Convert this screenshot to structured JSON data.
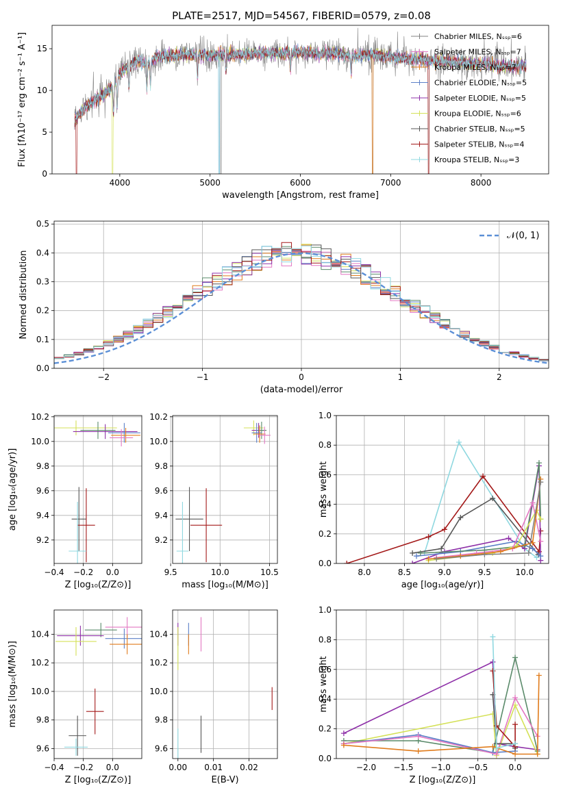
{
  "title": "PLATE=2517, MJD=54567, FIBERID=0579, z=0.08",
  "colors": {
    "Chabrier MILES": "#808080",
    "Salpeter MILES": "#e377c2",
    "Kroupa MILES": "#e07b1b",
    "Chabrier ELODIE": "#5b7fc7",
    "Salpeter ELODIE": "#8e30a8",
    "Kroupa ELODIE": "#d4e157",
    "Chabrier STELIB": "#555555",
    "Salpeter STELIB": "#a31818",
    "Kroupa STELIB": "#8fd8e0",
    "extra_green": "#5a8a6a",
    "normal": "#5b8fd6"
  },
  "chart_data": [
    {
      "type": "line",
      "title": "PLATE=2517, MJD=54567, FIBERID=0579, z=0.08",
      "xlabel": "wavelength [Angstrom, rest frame]",
      "ylabel": "Flux [fλ10⁻¹⁷ erg cm⁻² s⁻¹ A⁻¹]",
      "xlim": [
        3250,
        8750
      ],
      "ylim": [
        0,
        17.8
      ],
      "xticks": [
        "4000",
        "5000",
        "6000",
        "7000",
        "8000"
      ],
      "yticks": [
        "0",
        "5",
        "10",
        "15"
      ],
      "grid": false,
      "legend_position": "right",
      "legend": [
        "Chabrier MILES, Nₛₛₚ=6",
        "Salpeter MILES, Nₛₛₚ=7",
        "Kroupa MILES, Nₛₛₚ=7",
        "Chabrier ELODIE, Nₛₛₚ=5",
        "Salpeter ELODIE, Nₛₛₚ=5",
        "Kroupa ELODIE, Nₛₛₚ=6",
        "Chabrier STELIB, Nₛₛₚ=5",
        "Salpeter STELIB, Nₛₛₚ=4",
        "Kroupa STELIB, Nₛₛₚ=3"
      ],
      "continuum": {
        "wavelength": [
          3500,
          3600,
          3700,
          3800,
          3900,
          4000,
          4100,
          4200,
          4300,
          4400,
          4600,
          4800,
          5000,
          5200,
          5400,
          5600,
          5800,
          6000,
          6200,
          6400,
          6600,
          6800,
          7000,
          7200,
          7400,
          7600,
          7800,
          8000,
          8200,
          8400,
          8500
        ],
        "flux": [
          6.5,
          7.8,
          8.6,
          9.4,
          10.2,
          12.0,
          12.9,
          13.6,
          13.2,
          14.0,
          14.2,
          14.3,
          14.2,
          14.3,
          14.4,
          14.5,
          14.4,
          14.6,
          14.4,
          14.5,
          14.1,
          14.3,
          14.0,
          13.8,
          13.6,
          13.5,
          13.3,
          13.2,
          13.0,
          12.9,
          12.9
        ]
      }
    },
    {
      "type": "histogram",
      "xlabel": "(data-model)/error",
      "ylabel": "Normed distribution",
      "xlim": [
        -2.5,
        2.5
      ],
      "ylim": [
        0,
        0.51
      ],
      "xticks": [
        "−2",
        "−1",
        "0",
        "1",
        "2"
      ],
      "yticks": [
        "0.0",
        "0.1",
        "0.2",
        "0.3",
        "0.4",
        "0.5"
      ],
      "grid": true,
      "legend_position": "top-right",
      "overlay_label": "𝒩(0, 1)",
      "bin_width": 0.1,
      "bin_start": -2.5
    },
    {
      "type": "scatter",
      "xlabel": "Z [log₁₀(Z/Z⊙)]",
      "ylabel": "age  [log₁₀(age/yr)]",
      "xlim": [
        -0.4,
        0.2
      ],
      "ylim": [
        9.01,
        10.21
      ],
      "xticks": [
        "−0.4",
        "−0.2",
        "0.0"
      ],
      "yticks": [
        "9.2",
        "9.4",
        "9.6",
        "9.8",
        "10.0",
        "10.2"
      ],
      "grid": true,
      "points": [
        {
          "model": "Kroupa ELODIE",
          "x": -0.25,
          "y": 10.11,
          "xerr": 0.28,
          "yerr": 0.06
        },
        {
          "model": "Salpeter ELODIE",
          "x": -0.05,
          "y": 10.08,
          "xerr": 0.22,
          "yerr": 0.06
        },
        {
          "model": "extra_green",
          "x": -0.1,
          "y": 10.09,
          "xerr": 0.12,
          "yerr": 0.07
        },
        {
          "model": "Chabrier ELODIE",
          "x": 0.08,
          "y": 10.07,
          "xerr": 0.11,
          "yerr": 0.08
        },
        {
          "model": "Kroupa MILES",
          "x": 0.09,
          "y": 10.05,
          "xerr": 0.1,
          "yerr": 0.06
        },
        {
          "model": "Salpeter MILES",
          "x": 0.06,
          "y": 10.03,
          "xerr": 0.08,
          "yerr": 0.07
        },
        {
          "model": "Chabrier STELIB",
          "x": -0.23,
          "y": 9.37,
          "xerr": 0.05,
          "yerr": 0.26
        },
        {
          "model": "Salpeter STELIB",
          "x": -0.18,
          "y": 9.32,
          "xerr": 0.06,
          "yerr": 0.3
        },
        {
          "model": "Kroupa STELIB",
          "x": -0.24,
          "y": 9.11,
          "xerr": 0.06,
          "yerr": 0.4
        }
      ]
    },
    {
      "type": "scatter",
      "xlabel": "mass [log₁₀(M/M⊙)]",
      "ylabel": "",
      "xlim": [
        9.52,
        10.58
      ],
      "ylim": [
        9.01,
        10.21
      ],
      "xticks": [
        "9.5",
        "10.0",
        "10.5"
      ],
      "yticks": [
        "9.2",
        "9.4",
        "9.6",
        "9.8",
        "10.0",
        "10.2"
      ],
      "grid": true,
      "points": [
        {
          "model": "Kroupa ELODIE",
          "x": 10.34,
          "y": 10.11,
          "xerr": 0.1,
          "yerr": 0.06
        },
        {
          "model": "Salpeter ELODIE",
          "x": 10.39,
          "y": 10.09,
          "xerr": 0.07,
          "yerr": 0.06
        },
        {
          "model": "extra_green",
          "x": 10.42,
          "y": 10.09,
          "xerr": 0.05,
          "yerr": 0.07
        },
        {
          "model": "Chabrier ELODIE",
          "x": 10.37,
          "y": 10.07,
          "xerr": 0.05,
          "yerr": 0.08
        },
        {
          "model": "Kroupa MILES",
          "x": 10.4,
          "y": 10.06,
          "xerr": 0.06,
          "yerr": 0.07
        },
        {
          "model": "Salpeter MILES",
          "x": 10.45,
          "y": 10.05,
          "xerr": 0.06,
          "yerr": 0.07
        },
        {
          "model": "Chabrier STELIB",
          "x": 9.69,
          "y": 9.37,
          "xerr": 0.14,
          "yerr": 0.26
        },
        {
          "model": "Salpeter STELIB",
          "x": 9.86,
          "y": 9.32,
          "xerr": 0.16,
          "yerr": 0.3
        },
        {
          "model": "Kroupa STELIB",
          "x": 9.62,
          "y": 9.11,
          "xerr": 0.06,
          "yerr": 0.4
        }
      ]
    },
    {
      "type": "line",
      "xlabel": "age  [log₁₀(age/yr)]",
      "ylabel": "mass weight",
      "xlim": [
        7.65,
        10.3
      ],
      "ylim": [
        0,
        1.0
      ],
      "xticks": [
        "8.0",
        "8.5",
        "9.0",
        "9.5",
        "10.0"
      ],
      "yticks": [
        "0.0",
        "0.2",
        "0.4",
        "0.6",
        "0.8",
        "1.0"
      ],
      "grid": true,
      "series": [
        {
          "model": "Kroupa STELIB",
          "x": [
            8.75,
            9.18,
            10.0,
            10.15
          ],
          "y": [
            0.07,
            0.82,
            0.1,
            0.04
          ]
        },
        {
          "model": "Salpeter STELIB",
          "x": [
            7.78,
            8.8,
            9.0,
            9.48,
            10.18,
            10.2
          ],
          "y": [
            0.0,
            0.18,
            0.23,
            0.59,
            0.08,
            0.22
          ]
        },
        {
          "model": "Chabrier STELIB",
          "x": [
            8.6,
            8.96,
            9.2,
            9.6,
            10.17
          ],
          "y": [
            0.07,
            0.1,
            0.31,
            0.44,
            0.06
          ]
        },
        {
          "model": "Salpeter ELODIE",
          "x": [
            8.6,
            9.0,
            9.8,
            10.0,
            10.18,
            10.2
          ],
          "y": [
            0.0,
            0.08,
            0.17,
            0.1,
            0.66,
            0.02
          ]
        },
        {
          "model": "Chabrier ELODIE",
          "x": [
            8.65,
            9.2,
            9.9,
            10.1,
            10.2
          ],
          "y": [
            0.05,
            0.08,
            0.15,
            0.1,
            0.05
          ]
        },
        {
          "model": "extra_green",
          "x": [
            8.7,
            9.5,
            10.0,
            10.18,
            10.2
          ],
          "y": [
            0.07,
            0.09,
            0.12,
            0.68,
            0.3
          ]
        },
        {
          "model": "Kroupa ELODIE",
          "x": [
            8.8,
            9.6,
            9.9,
            10.15,
            10.2
          ],
          "y": [
            0.02,
            0.07,
            0.12,
            0.36,
            0.3
          ]
        },
        {
          "model": "Salpeter MILES",
          "x": [
            8.9,
            9.4,
            9.85,
            10.1,
            10.2
          ],
          "y": [
            0.04,
            0.07,
            0.1,
            0.41,
            0.15
          ]
        },
        {
          "model": "Kroupa MILES",
          "x": [
            8.8,
            9.2,
            9.7,
            10.1,
            10.2
          ],
          "y": [
            0.03,
            0.05,
            0.08,
            0.14,
            0.57
          ]
        },
        {
          "model": "Chabrier MILES",
          "x": [
            8.9,
            9.5,
            10.05,
            10.2
          ],
          "y": [
            0.03,
            0.06,
            0.07,
            0.55
          ]
        }
      ]
    },
    {
      "type": "scatter",
      "xlabel": "Z [log₁₀(Z/Z⊙)]",
      "ylabel": "mass [log₁₀(M/M⊙)]",
      "xlim": [
        -0.4,
        0.2
      ],
      "ylim": [
        9.53,
        10.57
      ],
      "xticks": [
        "−0.4",
        "−0.2",
        "0.0"
      ],
      "yticks": [
        "9.6",
        "9.8",
        "10.0",
        "10.2",
        "10.4"
      ],
      "grid": true,
      "points": [
        {
          "model": "Salpeter MILES",
          "x": 0.1,
          "y": 10.45,
          "xerr": 0.15,
          "yerr": 0.07
        },
        {
          "model": "extra_green",
          "x": -0.08,
          "y": 10.43,
          "xerr": 0.11,
          "yerr": 0.05
        },
        {
          "model": "Salpeter ELODIE",
          "x": -0.22,
          "y": 10.39,
          "xerr": 0.16,
          "yerr": 0.07
        },
        {
          "model": "Chabrier ELODIE",
          "x": 0.08,
          "y": 10.37,
          "xerr": 0.13,
          "yerr": 0.07
        },
        {
          "model": "Kroupa ELODIE",
          "x": -0.25,
          "y": 10.35,
          "xerr": 0.14,
          "yerr": 0.1
        },
        {
          "model": "Kroupa MILES",
          "x": 0.1,
          "y": 10.33,
          "xerr": 0.12,
          "yerr": 0.07
        },
        {
          "model": "Salpeter STELIB",
          "x": -0.12,
          "y": 9.86,
          "xerr": 0.06,
          "yerr": 0.16
        },
        {
          "model": "Chabrier STELIB",
          "x": -0.24,
          "y": 9.69,
          "xerr": 0.06,
          "yerr": 0.14
        },
        {
          "model": "Kroupa STELIB",
          "x": -0.25,
          "y": 9.61,
          "xerr": 0.08,
          "yerr": 0.06
        }
      ]
    },
    {
      "type": "scatter",
      "xlabel": "E(B-V)",
      "ylabel": "",
      "xlim": [
        -0.0015,
        0.028
      ],
      "ylim": [
        9.53,
        10.57
      ],
      "xticks": [
        "0.00",
        "0.01",
        "0.02"
      ],
      "yticks": [
        "9.6",
        "9.8",
        "10.0",
        "10.2",
        "10.4"
      ],
      "grid": true,
      "points": [
        {
          "model": "Salpeter MILES",
          "x": 0.0065,
          "y": 10.4,
          "xerr": 0,
          "yerr": 0.12
        },
        {
          "model": "Salpeter ELODIE",
          "x": 0.0,
          "y": 10.4,
          "xerr": 0,
          "yerr": 0.08
        },
        {
          "model": "Chabrier ELODIE",
          "x": 0.003,
          "y": 10.4,
          "xerr": 0,
          "yerr": 0.08
        },
        {
          "model": "Kroupa MILES",
          "x": 0.003,
          "y": 10.33,
          "xerr": 0,
          "yerr": 0.07
        },
        {
          "model": "Kroupa ELODIE",
          "x": 0.0,
          "y": 10.3,
          "xerr": 0,
          "yerr": 0.15
        },
        {
          "model": "Salpeter STELIB",
          "x": 0.0265,
          "y": 9.95,
          "xerr": 0,
          "yerr": 0.08
        },
        {
          "model": "Chabrier STELIB",
          "x": 0.0065,
          "y": 9.7,
          "xerr": 0,
          "yerr": 0.13
        },
        {
          "model": "Kroupa STELIB",
          "x": 0.0,
          "y": 9.6,
          "xerr": 0,
          "yerr": 0.14
        }
      ]
    },
    {
      "type": "line",
      "xlabel": "Z [log₁₀(Z/Z⊙)]",
      "ylabel": "mass weight",
      "xlim": [
        -2.4,
        0.45
      ],
      "ylim": [
        0,
        1.0
      ],
      "xticks": [
        "−2.0",
        "−1.5",
        "−1.0",
        "−0.5",
        "0.0"
      ],
      "yticks": [
        "0.0",
        "0.2",
        "0.4",
        "0.6",
        "0.8",
        "1.0"
      ],
      "grid": true,
      "series": [
        {
          "model": "Salpeter ELODIE",
          "x": [
            -2.3,
            -0.3,
            -0.25,
            0.0,
            0.3
          ],
          "y": [
            0.17,
            0.65,
            0.1,
            0.08,
            0.06
          ]
        },
        {
          "model": "Kroupa ELODIE",
          "x": [
            -2.3,
            -0.3,
            -0.25,
            0.0,
            0.3
          ],
          "y": [
            0.1,
            0.3,
            0.02,
            0.36,
            0.03
          ]
        },
        {
          "model": "extra_green",
          "x": [
            -2.3,
            -1.3,
            -0.3,
            0.0,
            0.3
          ],
          "y": [
            0.12,
            0.12,
            0.04,
            0.68,
            0.05
          ]
        },
        {
          "model": "Chabrier ELODIE",
          "x": [
            -2.3,
            -1.3,
            -0.3,
            0.0
          ],
          "y": [
            0.1,
            0.16,
            0.04,
            0.05
          ]
        },
        {
          "model": "Salpeter MILES",
          "x": [
            -2.3,
            -1.3,
            -0.25,
            0.0,
            0.3
          ],
          "y": [
            0.1,
            0.15,
            0.03,
            0.41,
            0.15
          ]
        },
        {
          "model": "Kroupa MILES",
          "x": [
            -2.3,
            -1.3,
            -0.3,
            0.0,
            0.3,
            0.32
          ],
          "y": [
            0.09,
            0.05,
            0.08,
            0.03,
            0.03,
            0.56
          ]
        },
        {
          "model": "Chabrier STELIB",
          "x": [
            -0.3,
            -0.25,
            0.0,
            0.0
          ],
          "y": [
            0.43,
            0.1,
            0.1,
            0.07
          ]
        },
        {
          "model": "Salpeter STELIB",
          "x": [
            -0.3,
            -0.25,
            0.0,
            0.0
          ],
          "y": [
            0.59,
            0.22,
            0.08,
            0.23
          ]
        },
        {
          "model": "Kroupa STELIB",
          "x": [
            -0.3,
            -0.25,
            0.0
          ],
          "y": [
            0.82,
            0.07,
            0.1
          ]
        }
      ]
    }
  ]
}
